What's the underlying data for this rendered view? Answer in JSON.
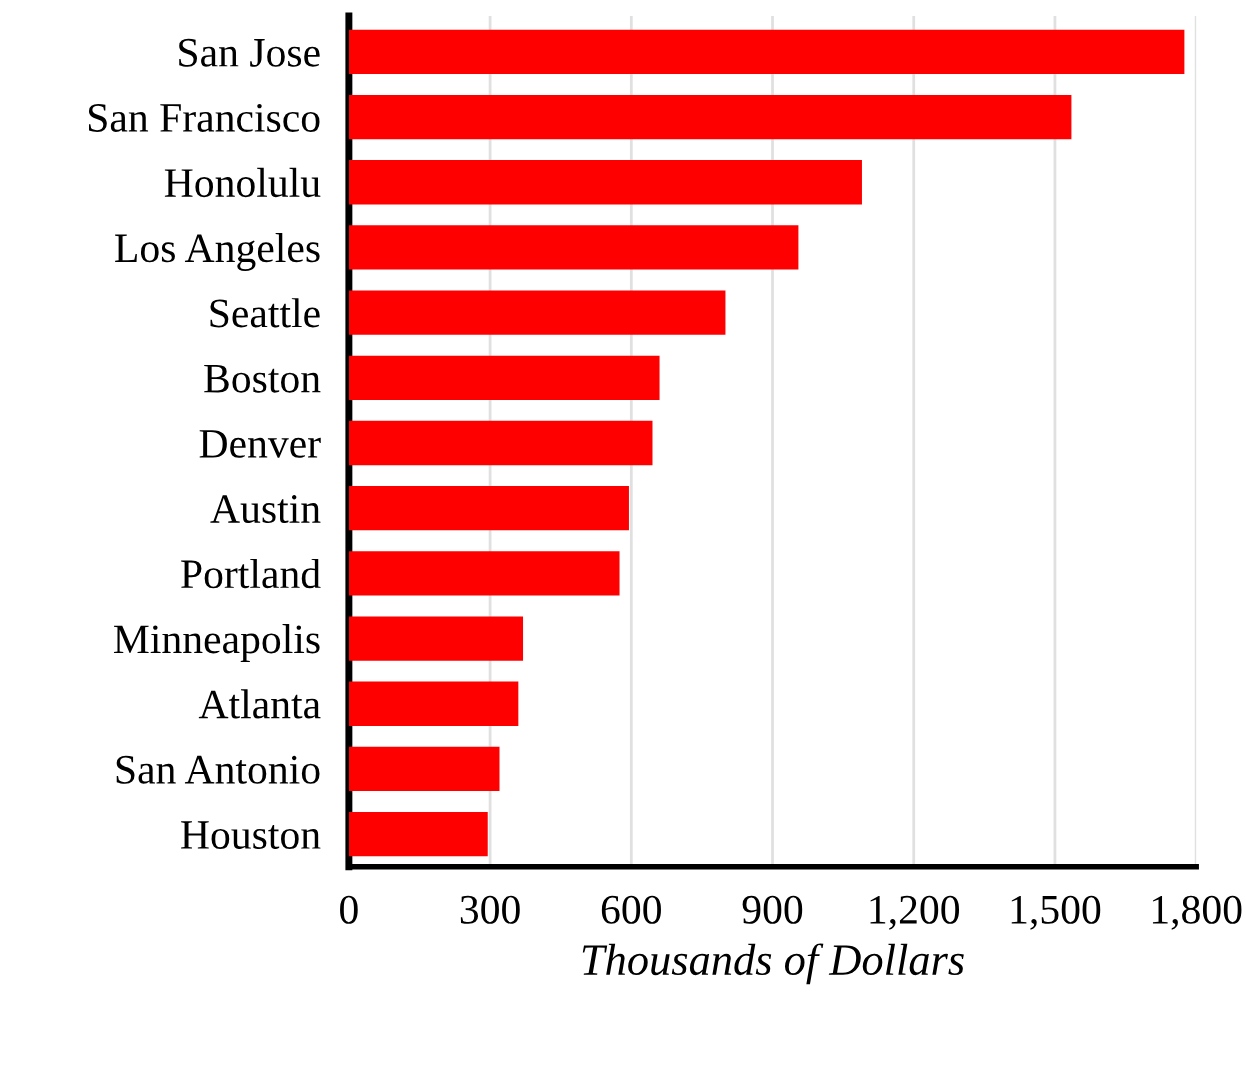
{
  "chart_data": {
    "type": "bar",
    "orientation": "horizontal",
    "xlabel": "Thousands of Dollars",
    "categories": [
      "San Jose",
      "San Francisco",
      "Honolulu",
      "Los Angeles",
      "Seattle",
      "Boston",
      "Denver",
      "Austin",
      "Portland",
      "Minneapolis",
      "Atlanta",
      "San Antonio",
      "Houston"
    ],
    "values": [
      1775,
      1535,
      1090,
      955,
      800,
      660,
      645,
      595,
      575,
      370,
      360,
      320,
      295
    ],
    "color": "#fe0000",
    "xlim": [
      0,
      1800
    ],
    "xticks": [
      0,
      300,
      600,
      900,
      {
        "value": 1200,
        "label": "1,200"
      },
      {
        "value": 1500,
        "label": "1,500"
      },
      {
        "value": 1800,
        "label": "1,800"
      }
    ],
    "grid": "x"
  }
}
